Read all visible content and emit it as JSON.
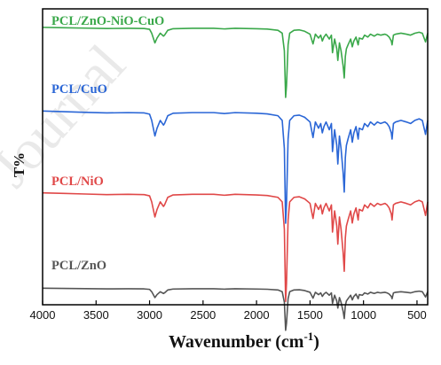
{
  "watermark": "Journal",
  "chart_data": {
    "type": "line",
    "xlabel": "Wavenumber (cm",
    "xlabel_sup": "-1",
    "xlabel_close": ")",
    "ylabel": "T%",
    "xlim": [
      4000,
      400
    ],
    "x_reversed": true,
    "x_ticks": [
      4000,
      3500,
      3000,
      2500,
      2000,
      1500,
      1000,
      500
    ],
    "y_ticks": false,
    "grid": false,
    "legend": "none",
    "series": [
      {
        "name": "PCL/ZnO-NiO-CuO",
        "color": "#3aa84a",
        "offset": 90.5,
        "scale": 1.0,
        "x": [
          4000,
          3800,
          3600,
          3400,
          3200,
          3050,
          3000,
          2980,
          2950,
          2930,
          2900,
          2870,
          2860,
          2830,
          2780,
          2600,
          2400,
          2300,
          2200,
          2000,
          1900,
          1800,
          1760,
          1740,
          1728,
          1720,
          1705,
          1690,
          1650,
          1600,
          1550,
          1500,
          1472,
          1450,
          1420,
          1400,
          1385,
          1370,
          1350,
          1320,
          1300,
          1290,
          1270,
          1250,
          1240,
          1225,
          1210,
          1190,
          1180,
          1170,
          1160,
          1145,
          1120,
          1105,
          1090,
          1070,
          1050,
          1040,
          1010,
          990,
          960,
          935,
          900,
          870,
          840,
          800,
          780,
          760,
          740,
          733,
          720,
          700,
          650,
          600,
          560,
          520,
          480,
          450,
          420,
          400
        ],
        "values": [
          0,
          0.2,
          0.4,
          0.6,
          0.5,
          0.6,
          1.0,
          3.0,
          8.0,
          5.5,
          3.0,
          4.5,
          4.0,
          1.5,
          0.7,
          0.5,
          0.5,
          0.8,
          0.5,
          0.7,
          0.9,
          1.5,
          3.0,
          12.0,
          36.0,
          30.0,
          9.0,
          3.0,
          1.5,
          1.3,
          2.0,
          3.5,
          8.5,
          3.5,
          5.5,
          4.0,
          7.0,
          5.0,
          3.5,
          6.0,
          4.0,
          13.0,
          6.0,
          11.0,
          17.0,
          8.0,
          12.0,
          20.0,
          26.0,
          15.0,
          11.0,
          9.0,
          6.0,
          10.0,
          7.0,
          5.0,
          9.0,
          5.5,
          6.0,
          4.0,
          5.0,
          3.5,
          4.5,
          3.5,
          4.0,
          3.5,
          4.0,
          5.0,
          7.0,
          9.0,
          4.0,
          3.5,
          3.0,
          3.5,
          4.0,
          3.0,
          2.5,
          3.0,
          7.5,
          3.0
        ]
      },
      {
        "name": "PCL/CuO",
        "color": "#2a66d6",
        "offset": 47.5,
        "scale": 1.6,
        "x": [
          4000,
          3800,
          3600,
          3400,
          3200,
          3050,
          3000,
          2980,
          2950,
          2930,
          2900,
          2870,
          2860,
          2830,
          2780,
          2600,
          2400,
          2300,
          2200,
          2000,
          1900,
          1800,
          1760,
          1740,
          1728,
          1720,
          1705,
          1690,
          1650,
          1600,
          1550,
          1500,
          1472,
          1450,
          1420,
          1400,
          1385,
          1370,
          1350,
          1320,
          1300,
          1290,
          1270,
          1250,
          1240,
          1225,
          1210,
          1190,
          1180,
          1170,
          1160,
          1145,
          1120,
          1105,
          1090,
          1070,
          1050,
          1040,
          1010,
          990,
          960,
          935,
          900,
          870,
          840,
          800,
          780,
          760,
          740,
          733,
          720,
          700,
          650,
          600,
          560,
          520,
          480,
          450,
          420,
          400
        ],
        "values": [
          0,
          0.2,
          0.4,
          0.6,
          0.5,
          0.6,
          1.0,
          3.0,
          8.0,
          5.5,
          3.0,
          4.5,
          4.0,
          1.5,
          0.7,
          0.5,
          0.5,
          0.8,
          0.5,
          0.7,
          0.9,
          1.5,
          3.0,
          12.0,
          36.0,
          30.0,
          9.0,
          3.0,
          1.5,
          1.3,
          2.0,
          3.5,
          8.5,
          3.5,
          5.5,
          4.0,
          7.0,
          5.0,
          3.5,
          6.0,
          4.0,
          13.0,
          6.0,
          11.0,
          17.0,
          8.0,
          12.0,
          20.0,
          26.0,
          15.0,
          11.0,
          9.0,
          6.0,
          10.0,
          7.0,
          5.0,
          9.0,
          5.5,
          6.0,
          4.0,
          5.0,
          3.5,
          4.5,
          3.5,
          4.0,
          3.5,
          4.0,
          5.0,
          7.0,
          9.0,
          4.0,
          3.5,
          3.0,
          3.5,
          4.0,
          3.0,
          2.5,
          3.0,
          7.5,
          3.0
        ]
      },
      {
        "name": "PCL/NiO",
        "color": "#e04848",
        "offset": 5.5,
        "scale": 1.55,
        "x": [
          4000,
          3800,
          3600,
          3400,
          3200,
          3050,
          3000,
          2980,
          2950,
          2930,
          2900,
          2870,
          2860,
          2830,
          2780,
          2600,
          2400,
          2300,
          2200,
          2000,
          1900,
          1800,
          1760,
          1740,
          1728,
          1720,
          1705,
          1690,
          1650,
          1600,
          1550,
          1500,
          1472,
          1450,
          1420,
          1400,
          1385,
          1370,
          1350,
          1320,
          1300,
          1290,
          1270,
          1250,
          1240,
          1225,
          1210,
          1190,
          1180,
          1170,
          1160,
          1145,
          1120,
          1105,
          1090,
          1070,
          1050,
          1040,
          1010,
          990,
          960,
          935,
          900,
          870,
          840,
          800,
          780,
          760,
          740,
          733,
          720,
          700,
          650,
          600,
          560,
          520,
          480,
          450,
          420,
          400
        ],
        "values": [
          0,
          0.2,
          0.4,
          0.6,
          0.5,
          0.6,
          1.0,
          3.0,
          8.0,
          5.5,
          3.0,
          4.5,
          4.0,
          1.5,
          0.7,
          0.5,
          0.5,
          0.8,
          0.5,
          0.7,
          0.9,
          1.5,
          3.0,
          12.0,
          36.0,
          30.0,
          9.0,
          3.0,
          1.5,
          1.3,
          2.0,
          3.5,
          8.5,
          3.5,
          5.5,
          4.0,
          7.0,
          5.0,
          3.5,
          6.0,
          4.0,
          13.0,
          6.0,
          11.0,
          17.0,
          8.0,
          12.0,
          20.0,
          26.0,
          15.0,
          11.0,
          9.0,
          6.0,
          10.0,
          7.0,
          5.0,
          9.0,
          5.5,
          6.0,
          4.0,
          5.0,
          3.5,
          4.5,
          3.5,
          4.0,
          3.5,
          4.0,
          5.0,
          7.0,
          9.0,
          4.0,
          3.5,
          3.0,
          3.5,
          4.0,
          3.0,
          2.5,
          3.0,
          7.5,
          3.0
        ]
      },
      {
        "name": "PCL/ZnO",
        "color": "#555555",
        "offset": -43.5,
        "scale": 0.6,
        "x": [
          4000,
          3800,
          3600,
          3400,
          3200,
          3050,
          3000,
          2980,
          2950,
          2930,
          2900,
          2870,
          2860,
          2830,
          2780,
          2600,
          2400,
          2300,
          2200,
          2000,
          1900,
          1800,
          1760,
          1740,
          1728,
          1720,
          1705,
          1690,
          1650,
          1600,
          1550,
          1500,
          1472,
          1450,
          1420,
          1400,
          1385,
          1370,
          1350,
          1320,
          1300,
          1290,
          1270,
          1250,
          1240,
          1225,
          1210,
          1190,
          1180,
          1170,
          1160,
          1145,
          1120,
          1105,
          1090,
          1070,
          1050,
          1040,
          1010,
          990,
          960,
          935,
          900,
          870,
          840,
          800,
          780,
          760,
          740,
          733,
          720,
          700,
          650,
          600,
          560,
          520,
          480,
          450,
          420,
          400
        ],
        "values": [
          0,
          0.2,
          0.4,
          0.6,
          0.5,
          0.6,
          1.0,
          3.0,
          8.0,
          5.5,
          3.0,
          4.5,
          4.0,
          1.5,
          0.7,
          0.5,
          0.5,
          0.8,
          0.5,
          0.7,
          0.9,
          1.5,
          3.0,
          12.0,
          36.0,
          30.0,
          9.0,
          3.0,
          1.5,
          1.3,
          2.0,
          3.5,
          8.5,
          3.5,
          5.5,
          4.0,
          7.0,
          5.0,
          3.5,
          6.0,
          4.0,
          13.0,
          6.0,
          11.0,
          17.0,
          8.0,
          12.0,
          20.0,
          26.0,
          15.0,
          11.0,
          9.0,
          6.0,
          10.0,
          7.0,
          5.0,
          9.0,
          5.5,
          6.0,
          4.0,
          5.0,
          3.5,
          4.5,
          3.5,
          4.0,
          3.5,
          4.0,
          5.0,
          7.0,
          9.0,
          4.0,
          3.5,
          3.0,
          3.5,
          4.0,
          3.0,
          2.5,
          3.0,
          7.5,
          3.0
        ]
      }
    ]
  }
}
